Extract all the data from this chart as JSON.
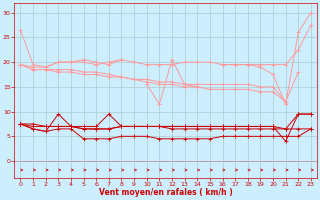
{
  "x": [
    0,
    1,
    2,
    3,
    4,
    5,
    6,
    7,
    8,
    9,
    10,
    11,
    12,
    13,
    14,
    15,
    16,
    17,
    18,
    19,
    20,
    21,
    22,
    23
  ],
  "line1": [
    26.5,
    19.5,
    19.0,
    20.0,
    20.0,
    20.5,
    20.0,
    19.5,
    20.5,
    null,
    15.5,
    11.5,
    20.5,
    15.5,
    15.0,
    null,
    19.5,
    19.5,
    19.5,
    19.0,
    17.5,
    11.5,
    26.0,
    30.0
  ],
  "line2": [
    19.5,
    19.0,
    19.0,
    20.0,
    20.0,
    20.0,
    19.5,
    20.0,
    20.5,
    20.0,
    19.5,
    19.5,
    19.5,
    20.0,
    20.0,
    20.0,
    19.5,
    19.5,
    19.5,
    19.5,
    19.5,
    19.5,
    22.5,
    27.5
  ],
  "line3": [
    19.5,
    18.5,
    18.5,
    18.5,
    18.5,
    18.0,
    18.0,
    17.5,
    17.0,
    16.5,
    16.5,
    16.0,
    16.0,
    15.5,
    15.5,
    15.5,
    15.5,
    15.5,
    15.5,
    15.0,
    15.0,
    12.0,
    18.0,
    null
  ],
  "line4": [
    19.5,
    18.5,
    18.5,
    18.0,
    18.0,
    17.5,
    17.5,
    17.0,
    17.0,
    16.5,
    16.0,
    15.5,
    15.5,
    15.0,
    15.0,
    14.5,
    14.5,
    14.5,
    14.5,
    14.0,
    14.0,
    12.0,
    null,
    null
  ],
  "line5_dark": [
    7.5,
    6.5,
    6.0,
    9.5,
    7.0,
    7.0,
    7.0,
    9.5,
    7.0,
    7.0,
    7.0,
    7.0,
    7.0,
    7.0,
    7.0,
    7.0,
    7.0,
    7.0,
    7.0,
    7.0,
    7.0,
    4.0,
    9.5,
    9.5
  ],
  "line6_dark": [
    7.5,
    7.5,
    7.0,
    7.0,
    7.0,
    6.5,
    6.5,
    6.5,
    7.0,
    7.0,
    7.0,
    7.0,
    6.5,
    6.5,
    6.5,
    6.5,
    6.5,
    6.5,
    6.5,
    6.5,
    6.5,
    6.5,
    6.5,
    6.5
  ],
  "line7_dark": [
    7.5,
    6.5,
    6.0,
    6.5,
    6.5,
    4.5,
    4.5,
    4.5,
    5.0,
    5.0,
    5.0,
    4.5,
    4.5,
    4.5,
    4.5,
    4.5,
    5.0,
    5.0,
    5.0,
    5.0,
    5.0,
    5.0,
    5.0,
    6.5
  ],
  "line8_dark": [
    7.5,
    7.0,
    7.0,
    7.0,
    7.0,
    6.5,
    6.5,
    6.5,
    7.0,
    7.0,
    7.0,
    7.0,
    7.0,
    7.0,
    7.0,
    7.0,
    7.0,
    7.0,
    7.0,
    7.0,
    7.0,
    6.5,
    9.5,
    9.5
  ],
  "xlabel": "Vent moyen/en rafales ( km/h )",
  "yticks": [
    0,
    5,
    10,
    15,
    20,
    25,
    30
  ],
  "ylim": [
    -3.5,
    32
  ],
  "xlim": [
    -0.5,
    23.5
  ],
  "bg_color": "#cceeff",
  "grid_color": "#aacccc",
  "light_red": "#ff9999",
  "dark_red": "#cc0000",
  "label_color": "#cc0000"
}
